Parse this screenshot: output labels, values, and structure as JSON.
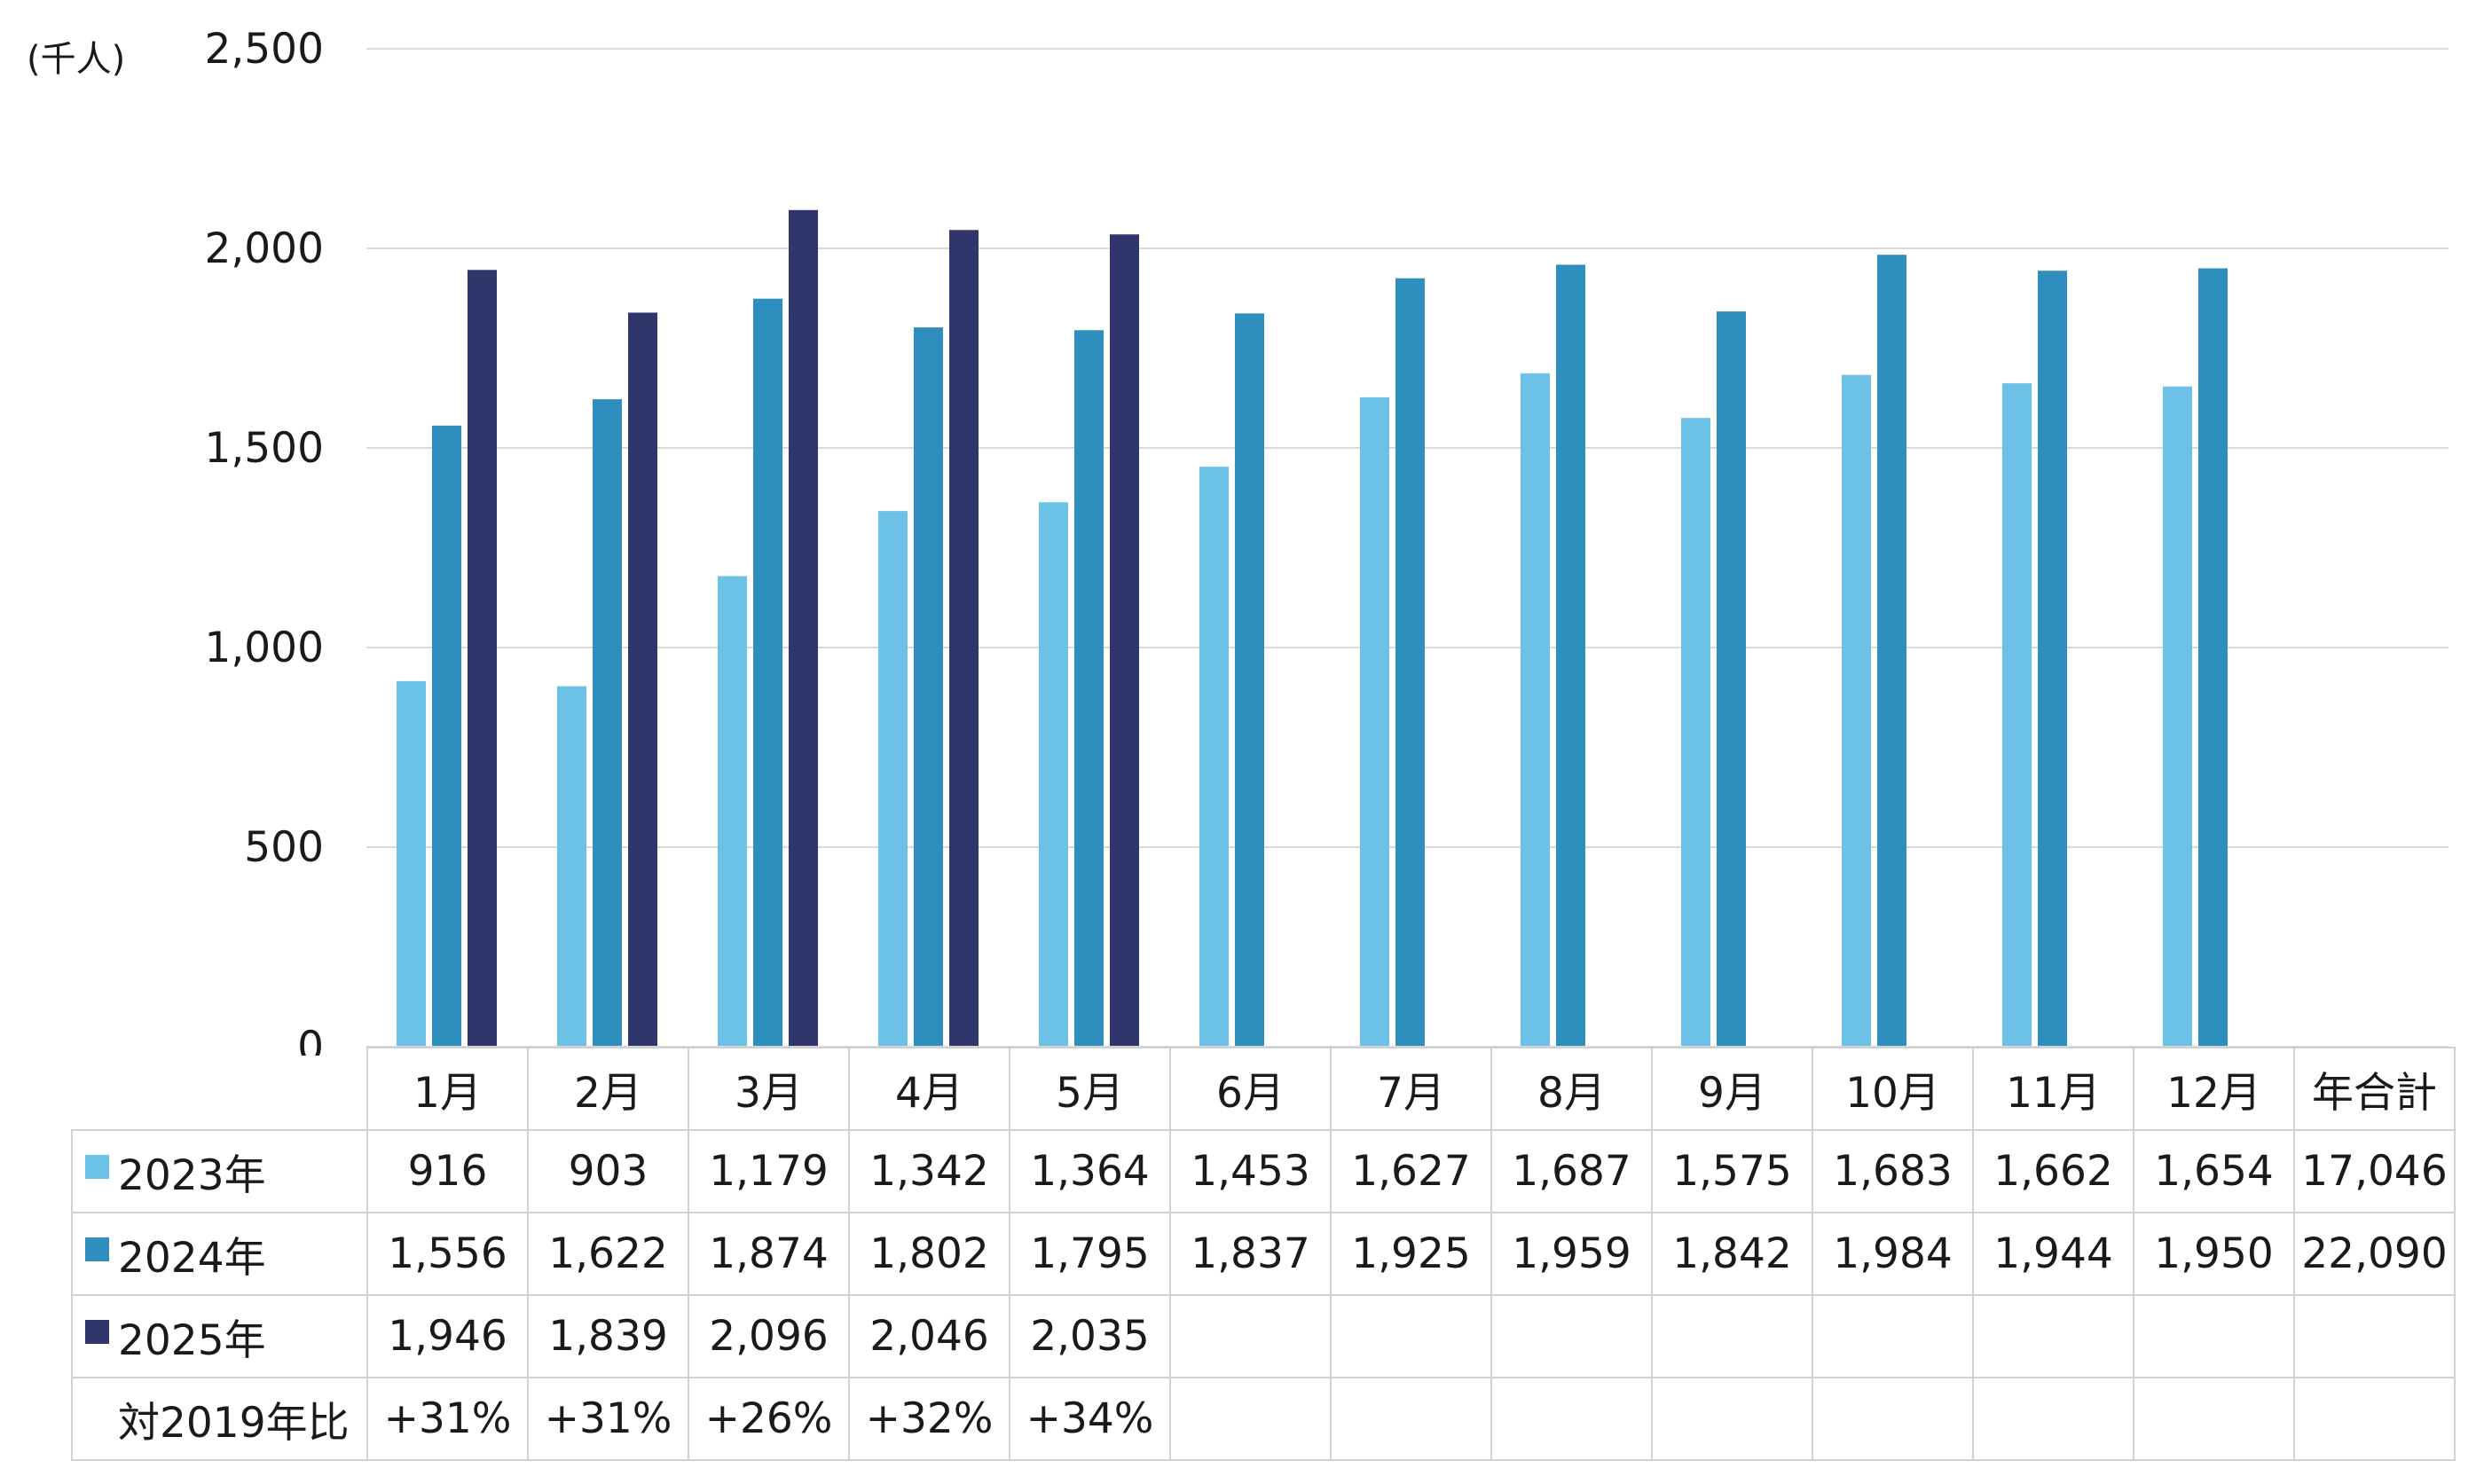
{
  "unit_label": "(千人)",
  "colors": {
    "2023年": "#6cc2e6",
    "2024年": "#2e8ebd",
    "2025年": "#2e366b",
    "grid": "#d9d9d9",
    "text": "#1a1a1a"
  },
  "table": {
    "corner": "",
    "header": [
      "1月",
      "2月",
      "3月",
      "4月",
      "5月",
      "6月",
      "7月",
      "8月",
      "9月",
      "10月",
      "11月",
      "12月",
      "年合計"
    ],
    "rows": [
      {
        "label": "2023年",
        "swatch": "#6cc2e6",
        "cells": [
          "916",
          "903",
          "1,179",
          "1,342",
          "1,364",
          "1,453",
          "1,627",
          "1,687",
          "1,575",
          "1,683",
          "1,662",
          "1,654",
          "17,046"
        ]
      },
      {
        "label": "2024年",
        "swatch": "#2e8ebd",
        "cells": [
          "1,556",
          "1,622",
          "1,874",
          "1,802",
          "1,795",
          "1,837",
          "1,925",
          "1,959",
          "1,842",
          "1,984",
          "1,944",
          "1,950",
          "22,090"
        ]
      },
      {
        "label": "2025年",
        "swatch": "#2e366b",
        "cells": [
          "1,946",
          "1,839",
          "2,096",
          "2,046",
          "2,035",
          "",
          "",
          "",
          "",
          "",
          "",
          "",
          ""
        ]
      },
      {
        "label": "対2019年比",
        "swatch": "",
        "cells": [
          "+31%",
          "+31%",
          "+26%",
          "+32%",
          "+34%",
          "",
          "",
          "",
          "",
          "",
          "",
          "",
          ""
        ]
      }
    ]
  },
  "chart_data": {
    "type": "bar",
    "categories": [
      "1月",
      "2月",
      "3月",
      "4月",
      "5月",
      "6月",
      "7月",
      "8月",
      "9月",
      "10月",
      "11月",
      "12月"
    ],
    "series": [
      {
        "name": "2023年",
        "color": "#6cc2e6",
        "values": [
          916,
          903,
          1179,
          1342,
          1364,
          1453,
          1627,
          1687,
          1575,
          1683,
          1662,
          1654
        ]
      },
      {
        "name": "2024年",
        "color": "#2e8ebd",
        "values": [
          1556,
          1622,
          1874,
          1802,
          1795,
          1837,
          1925,
          1959,
          1842,
          1984,
          1944,
          1950
        ]
      },
      {
        "name": "2025年",
        "color": "#2e366b",
        "values": [
          1946,
          1839,
          2096,
          2046,
          2035,
          null,
          null,
          null,
          null,
          null,
          null,
          null
        ]
      }
    ],
    "ylabel": "(千人)",
    "ylim": [
      0,
      2500
    ],
    "yticks": [
      0,
      500,
      1000,
      1500,
      2000,
      2500
    ],
    "ytick_labels": [
      "0",
      "500",
      "1,000",
      "1,500",
      "2,000",
      "2,500"
    ],
    "grid": true,
    "legend": "data-table-left"
  }
}
